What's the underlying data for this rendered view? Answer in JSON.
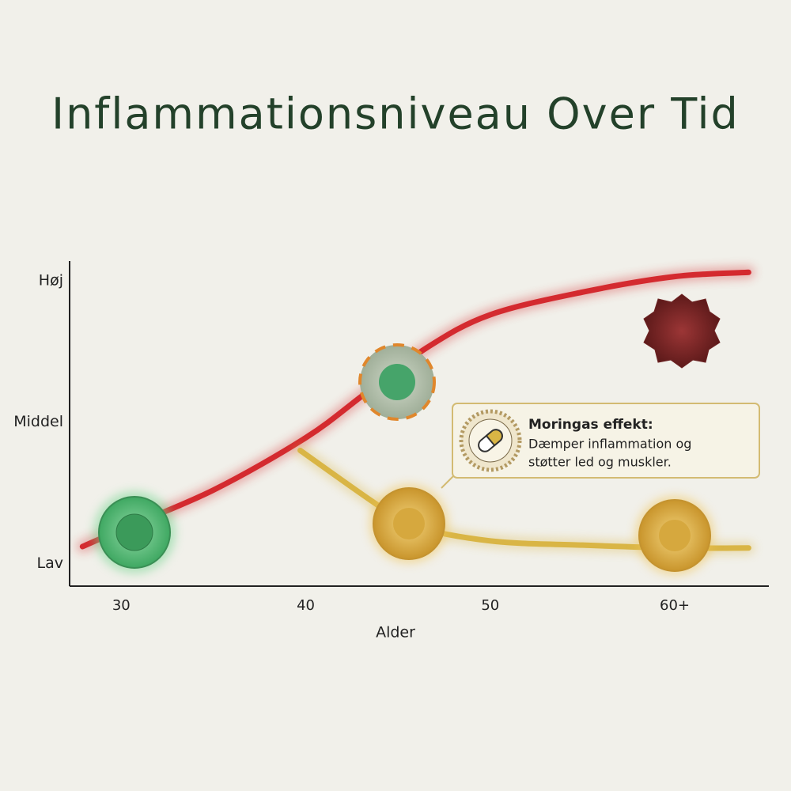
{
  "chart_data": {
    "type": "line",
    "title": "Inflammationsniveau Over Tid",
    "x_label": "Alder",
    "xlim": [
      27.2,
      65.1
    ],
    "xticks": [
      30,
      40,
      50,
      {
        "value": 60,
        "label": "60+"
      }
    ],
    "ylim": [
      -0.16,
      2.14
    ],
    "yticks": [
      {
        "value": 0,
        "label": "Lav"
      },
      {
        "value": 1,
        "label": "Middel"
      },
      {
        "value": 2,
        "label": "Høj"
      }
    ],
    "series": [
      {
        "color": "#d42a2f",
        "x": [
          27.9,
          30,
          35,
          40,
          43.2,
          46.6,
          50,
          55,
          60,
          64
        ],
        "values": [
          0.12,
          0.24,
          0.52,
          0.89,
          1.2,
          1.53,
          1.76,
          1.92,
          2.03,
          2.06
        ]
      },
      {
        "color": "#d9b545",
        "x": [
          39.7,
          43.6,
          45.7,
          50,
          55,
          60,
          64
        ],
        "values": [
          0.8,
          0.44,
          0.27,
          0.16,
          0.13,
          0.11,
          0.11
        ]
      }
    ],
    "annotation": {
      "title": "Moringas effekt:",
      "lines": [
        "Dæmper inflammation og",
        "støtter led og muskler."
      ]
    }
  }
}
